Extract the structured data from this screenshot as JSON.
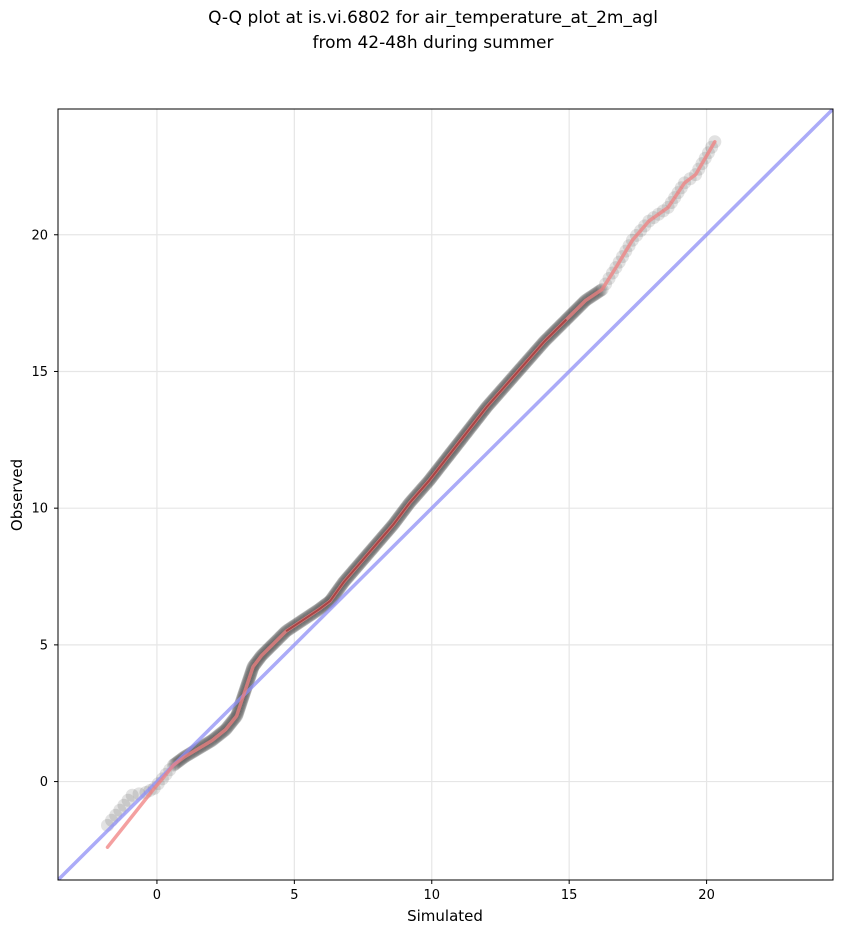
{
  "chart_data": {
    "type": "scatter",
    "title": [
      "Q-Q plot at is.vi.6802 for air_temperature_at_2m_agl",
      "from 42-48h during summer"
    ],
    "xlabel": "Simulated",
    "ylabel": "Observed",
    "xlim": [
      -3.6,
      24.6
    ],
    "ylim": [
      -3.6,
      24.6
    ],
    "xticks": [
      0,
      5,
      10,
      15,
      20
    ],
    "yticks": [
      0,
      5,
      10,
      15,
      20
    ],
    "grid": true,
    "colors": {
      "points": "#333333",
      "fit_line": "#f08080",
      "fit_line_dense": "#8b1a1a",
      "identity_line": "#8f8ff5"
    },
    "quantile_curve": [
      [
        -1.8,
        -1.6
      ],
      [
        -0.9,
        -0.5
      ],
      [
        -0.4,
        -0.4
      ],
      [
        -0.1,
        -0.25
      ],
      [
        0.2,
        0.1
      ],
      [
        0.6,
        0.6
      ],
      [
        1.0,
        0.9
      ],
      [
        1.5,
        1.2
      ],
      [
        2.0,
        1.5
      ],
      [
        2.5,
        1.9
      ],
      [
        2.9,
        2.4
      ],
      [
        3.1,
        3.0
      ],
      [
        3.3,
        3.6
      ],
      [
        3.5,
        4.2
      ],
      [
        3.8,
        4.6
      ],
      [
        4.2,
        5.0
      ],
      [
        4.7,
        5.5
      ],
      [
        5.3,
        5.9
      ],
      [
        5.9,
        6.3
      ],
      [
        6.3,
        6.6
      ],
      [
        6.8,
        7.3
      ],
      [
        7.4,
        8.0
      ],
      [
        8.0,
        8.7
      ],
      [
        8.6,
        9.4
      ],
      [
        9.2,
        10.2
      ],
      [
        9.9,
        11.0
      ],
      [
        10.6,
        11.9
      ],
      [
        11.3,
        12.8
      ],
      [
        12.0,
        13.7
      ],
      [
        12.7,
        14.5
      ],
      [
        13.4,
        15.3
      ],
      [
        14.1,
        16.1
      ],
      [
        14.9,
        16.9
      ],
      [
        15.6,
        17.6
      ],
      [
        16.2,
        18.0
      ],
      [
        16.7,
        18.8
      ],
      [
        17.3,
        19.8
      ],
      [
        17.9,
        20.5
      ],
      [
        18.6,
        21.0
      ],
      [
        19.2,
        21.9
      ],
      [
        19.6,
        22.2
      ],
      [
        20.3,
        23.4
      ]
    ],
    "fit_line": [
      [
        -1.8,
        -2.4
      ],
      [
        20.3,
        23.4
      ]
    ],
    "identity_line": [
      [
        -3.6,
        -3.6
      ],
      [
        24.6,
        24.6
      ]
    ]
  }
}
